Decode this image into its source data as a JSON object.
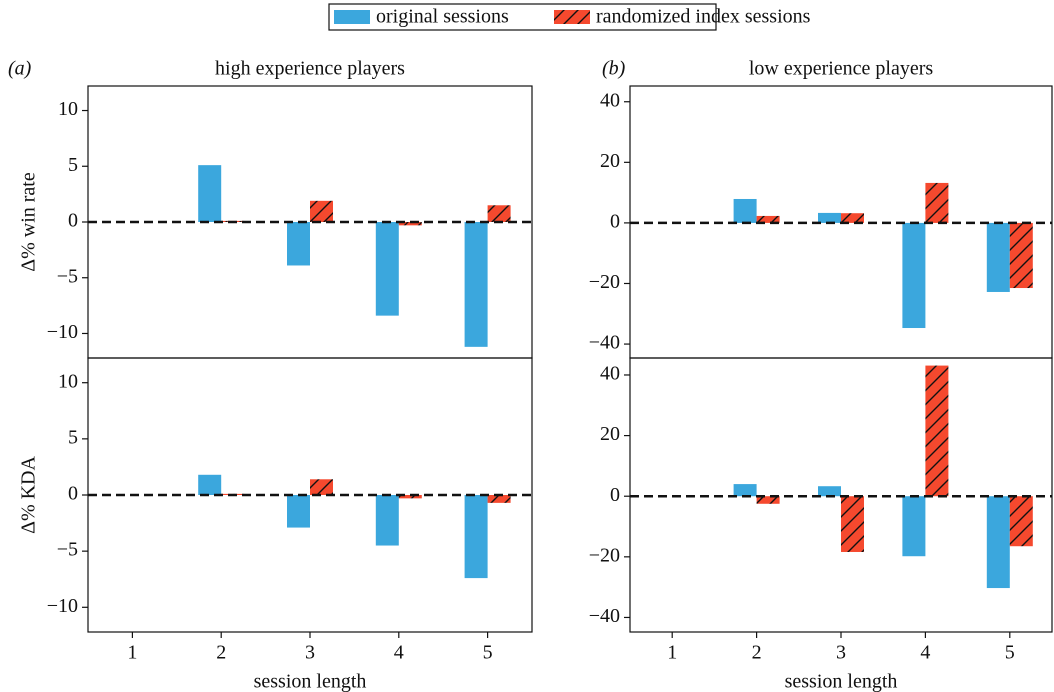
{
  "legend_series": [
    "original sessions",
    "randomized index sessions"
  ],
  "chart_data": [
    {
      "type": "bar",
      "panel_label": "(a)",
      "title": "high experience players",
      "ylabel": "Δ% win rate",
      "series": [
        {
          "color": "#3ba7dd",
          "values": [
            null,
            5.1,
            -3.9,
            -8.4,
            -11.2
          ]
        },
        {
          "color": "#f5492e",
          "hatch": true,
          "values": [
            null,
            0.1,
            1.9,
            -0.3,
            1.5
          ]
        }
      ],
      "ylim": [
        -12.2,
        12.2
      ],
      "yticks": [
        {
          "value": -10,
          "label": "−10"
        },
        {
          "value": -5,
          "label": "−5"
        },
        0,
        5,
        10
      ],
      "reference_line": 0
    },
    {
      "type": "bar",
      "ylabel": "Δ% KDA",
      "xlabel": "session length",
      "categories": [
        1,
        2,
        3,
        4,
        5
      ],
      "series": [
        {
          "color": "#3ba7dd",
          "values": [
            null,
            1.8,
            -2.9,
            -4.5,
            -7.4
          ]
        },
        {
          "color": "#f5492e",
          "hatch": true,
          "values": [
            null,
            0.1,
            1.4,
            -0.3,
            -0.7
          ]
        }
      ],
      "ylim": [
        -12.2,
        12.2
      ],
      "yticks": [
        {
          "value": -10,
          "label": "−10"
        },
        {
          "value": -5,
          "label": "−5"
        },
        0,
        5,
        10
      ],
      "reference_line": 0
    },
    {
      "type": "bar",
      "panel_label": "(b)",
      "title": "low experience players",
      "series": [
        {
          "color": "#3ba7dd",
          "values": [
            null,
            7.9,
            3.3,
            -34.7,
            -22.8
          ]
        },
        {
          "color": "#f5492e",
          "hatch": true,
          "values": [
            null,
            2.3,
            3.2,
            13.2,
            -21.5
          ]
        }
      ],
      "ylim": [
        -44.6,
        45.2
      ],
      "yticks": [
        {
          "value": -40,
          "label": "−40"
        },
        {
          "value": -20,
          "label": "−20"
        },
        0,
        20,
        40
      ],
      "reference_line": 0
    },
    {
      "type": "bar",
      "xlabel": "session length",
      "categories": [
        1,
        2,
        3,
        4,
        5
      ],
      "series": [
        {
          "color": "#3ba7dd",
          "values": [
            null,
            4,
            3.3,
            -19.8,
            -30.3
          ]
        },
        {
          "color": "#f5492e",
          "hatch": true,
          "values": [
            null,
            -2.5,
            -18.4,
            43.1,
            -16.5
          ]
        }
      ],
      "ylim": [
        -44.8,
        45.6
      ],
      "yticks": [
        {
          "value": -40,
          "label": "−40"
        },
        {
          "value": -20,
          "label": "−20"
        },
        0,
        20,
        40
      ],
      "reference_line": 0
    }
  ]
}
